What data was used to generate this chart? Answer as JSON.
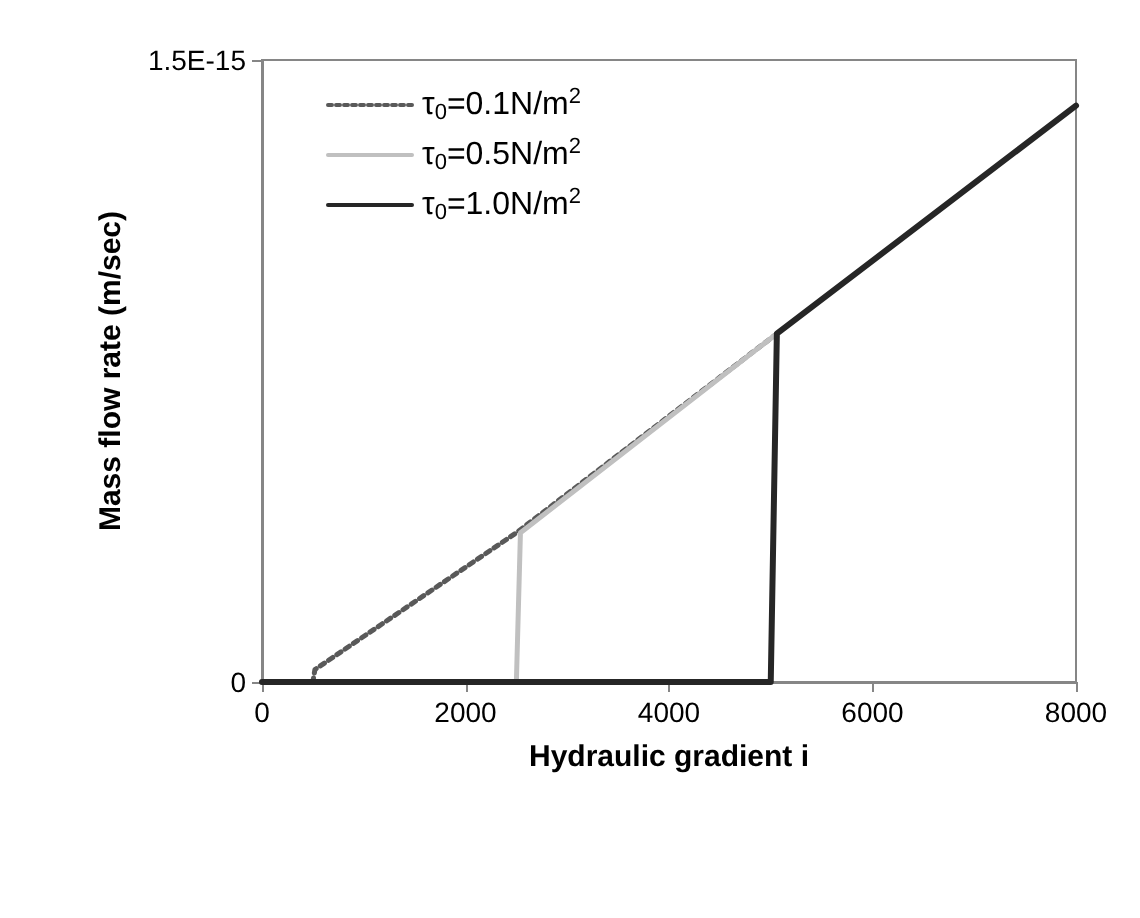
{
  "chart_data": {
    "type": "line",
    "xlabel": "Hydraulic gradient i",
    "ylabel": "Mass flow rate (m/sec)",
    "xlim": [
      0,
      8000
    ],
    "xticks": [
      0,
      2000,
      4000,
      6000,
      8000
    ],
    "ylim": [
      0,
      1.5e-15
    ],
    "yticks": [
      0,
      {
        "value": 1.5e-15,
        "label": "1.5E-15"
      }
    ],
    "grid": false,
    "legend": "top left",
    "marker": "none",
    "series": [
      {
        "name": "τ$_{0}$=0.1N/m$^{2}$",
        "color": "#595959",
        "line_style": "dotted",
        "x": [
          0,
          500,
          520,
          2500,
          5060
        ],
        "values": [
          0,
          0,
          3e-17,
          3.6e-16,
          8.4e-16
        ]
      },
      {
        "name": "τ$_{0}$=0.5N/m$^{2}$",
        "color": "#c0c0c0",
        "line_style": "solid",
        "x": [
          0,
          2500,
          2540,
          5060
        ],
        "values": [
          0,
          0,
          3.6e-16,
          8.4e-16
        ]
      },
      {
        "name": "τ$_{0}$=1.0N/m$^{2}$",
        "color": "#262626",
        "line_style": "solid",
        "x": [
          0,
          5000,
          5060,
          8000
        ],
        "values": [
          0,
          0,
          8.4e-16,
          1.39e-15
        ]
      }
    ]
  }
}
